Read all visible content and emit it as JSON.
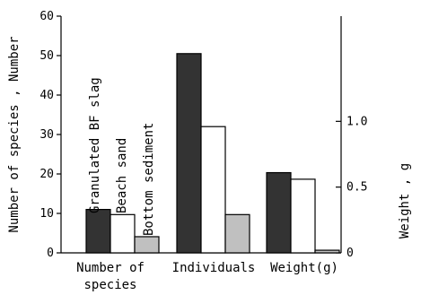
{
  "chart_data": {
    "type": "bar",
    "categories": [
      "Number of species",
      "Individuals",
      "Weight(g)"
    ],
    "category_label_lines": [
      [
        "Number of",
        "species"
      ],
      [
        "Individuals"
      ],
      [
        "Weight(g)"
      ]
    ],
    "series": [
      {
        "name": "Granulated BF slag",
        "color": "#333333",
        "left_axis_values": [
          11,
          50.5,
          null
        ],
        "right_axis_values": [
          null,
          null,
          0.61
        ]
      },
      {
        "name": "Beach sand",
        "color": "#ffffff",
        "left_axis_values": [
          9.7,
          32,
          null
        ],
        "right_axis_values": [
          null,
          null,
          0.56
        ]
      },
      {
        "name": "Bottom sediment",
        "color": "#c0c0c0",
        "left_axis_values": [
          4.1,
          9.7,
          null
        ],
        "right_axis_values": [
          null,
          null,
          0.02
        ]
      }
    ],
    "y_left": {
      "label": "Number of species , Number",
      "range": [
        0,
        60
      ],
      "ticks": [
        "0",
        "10",
        "20",
        "30",
        "40",
        "50",
        "60"
      ]
    },
    "y_right": {
      "label": "Weight , g",
      "range": [
        0,
        1.8
      ],
      "ticks": [
        "0",
        "0.5",
        "1.0"
      ]
    },
    "grid": false,
    "legend": "vertical labels above first group"
  }
}
